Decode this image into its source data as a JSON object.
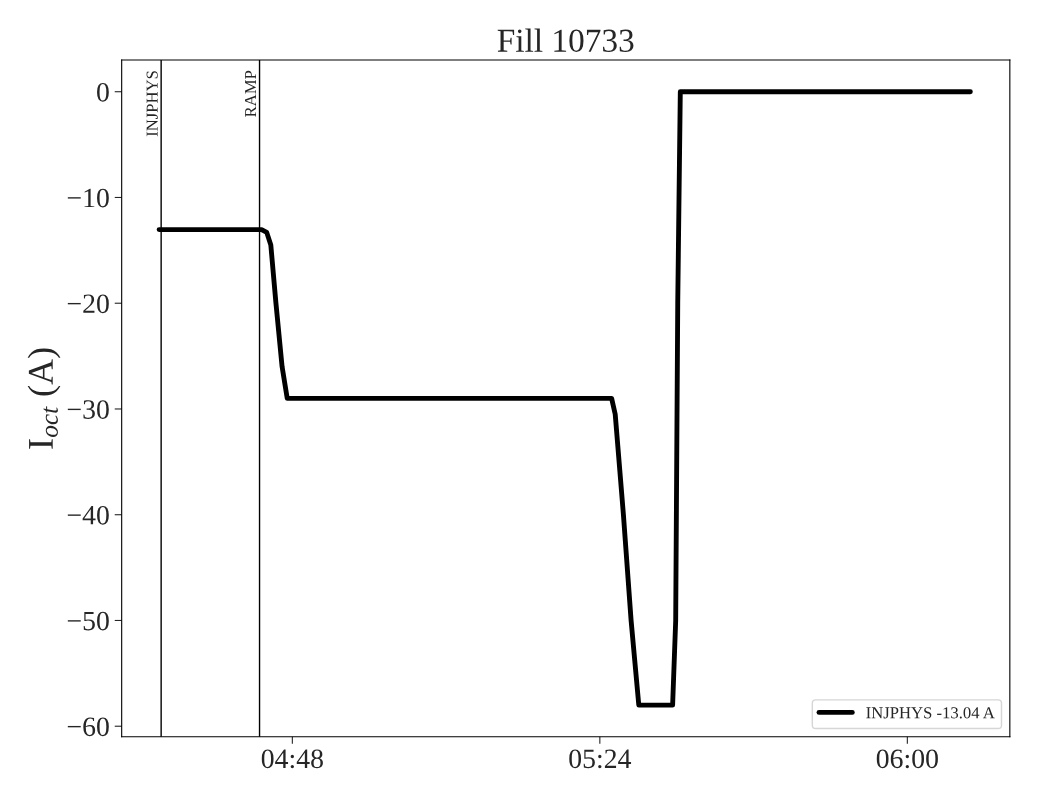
{
  "chart_data": {
    "type": "line",
    "title": "Fill 10733",
    "ylabel": "I$_{oct}$ (A)",
    "series": [
      {
        "name": "INJPHYS -13.04 A",
        "color": "#000000",
        "x": [
          4.54,
          4.74,
          4.75,
          4.758,
          4.768,
          4.78,
          4.79,
          5.423,
          5.43,
          5.446,
          5.461,
          5.476,
          5.542,
          5.548,
          5.552,
          5.557,
          6.123
        ],
        "values": [
          -13.04,
          -13.04,
          -13.3,
          -14.5,
          -20,
          -26,
          -29,
          -29,
          -30.5,
          -40,
          -50,
          -58,
          -58,
          -50,
          -20,
          0,
          0
        ]
      }
    ],
    "xlim": [
      4.467,
      6.2
    ],
    "xticks": [
      {
        "value": 4.8,
        "label": "04:48"
      },
      {
        "value": 5.4,
        "label": "05:24"
      },
      {
        "value": 6.0,
        "label": "06:00"
      }
    ],
    "ylim": [
      -61,
      3
    ],
    "yticks": [
      {
        "value": 0,
        "label": "0"
      },
      {
        "value": -10,
        "label": "−10"
      },
      {
        "value": -20,
        "label": "−20"
      },
      {
        "value": -30,
        "label": "−30"
      },
      {
        "value": -40,
        "label": "−40"
      },
      {
        "value": -50,
        "label": "−50"
      },
      {
        "value": -60,
        "label": "−60"
      }
    ],
    "ref_lines": [
      {
        "axis": "x",
        "value": 4.544,
        "label": "INJPHYS",
        "color": "#000000"
      },
      {
        "axis": "x",
        "value": 4.736,
        "label": "RAMP",
        "color": "#000000"
      }
    ],
    "grid": false,
    "legend": "bottom right",
    "marker": "none",
    "line_style": "solid"
  }
}
